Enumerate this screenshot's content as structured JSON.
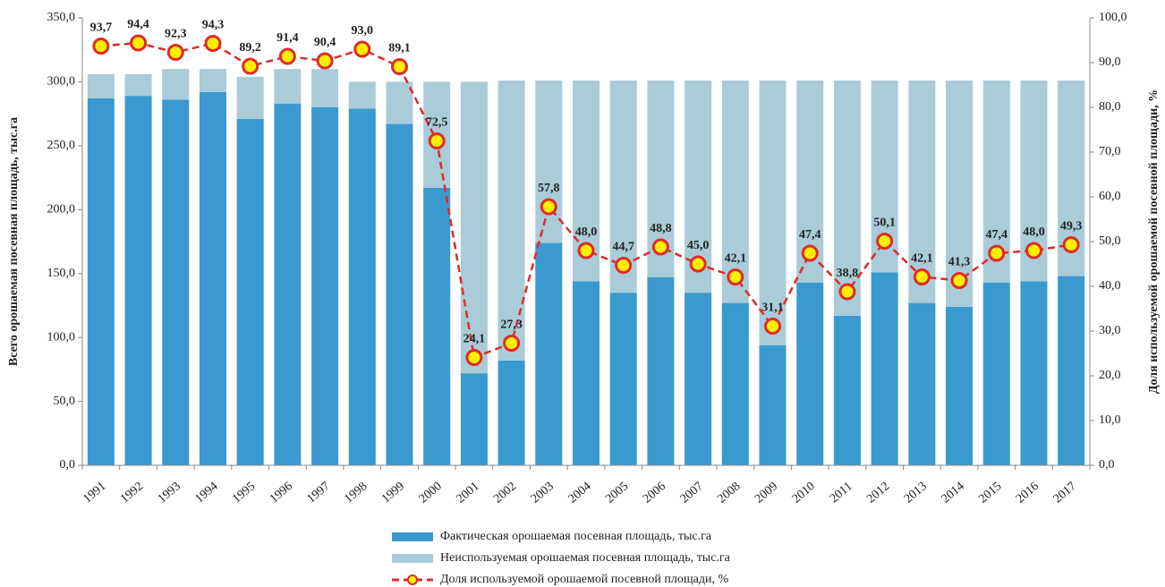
{
  "chart_data": {
    "type": "bar",
    "stacked": true,
    "categories": [
      "1991",
      "1992",
      "1993",
      "1994",
      "1995",
      "1996",
      "1997",
      "1998",
      "1999",
      "2000",
      "2001",
      "2002",
      "2003",
      "2004",
      "2005",
      "2006",
      "2007",
      "2008",
      "2009",
      "2010",
      "2011",
      "2012",
      "2013",
      "2014",
      "2015",
      "2016",
      "2017"
    ],
    "series": [
      {
        "name": "Фактическая орошаемая посевная площадь, тыс.га",
        "type": "bar",
        "color": "#3a9ad0",
        "values": [
          287,
          289,
          286,
          292,
          271,
          283,
          280,
          279,
          267,
          217,
          72,
          82,
          174,
          144,
          135,
          147,
          135,
          127,
          94,
          143,
          117,
          151,
          127,
          124,
          143,
          144,
          148
        ]
      },
      {
        "name": "Неиспользуемая орошаемая посевная площадь, тыс.га",
        "type": "bar",
        "color": "#a9ccd8",
        "values": [
          19,
          17,
          24,
          18,
          33,
          27,
          30,
          21,
          33,
          83,
          228,
          219,
          127,
          157,
          166,
          154,
          166,
          174,
          207,
          158,
          184,
          150,
          174,
          177,
          158,
          157,
          153
        ]
      },
      {
        "name": "Доля используемой орошаемой посевной площади, %",
        "type": "line",
        "axis": "y2",
        "color": "#e02a2a",
        "marker_color": "#ffee00",
        "values": [
          93.7,
          94.4,
          92.3,
          94.3,
          89.2,
          91.4,
          90.4,
          93.0,
          89.1,
          72.5,
          24.1,
          27.3,
          57.8,
          48.0,
          44.7,
          48.8,
          45.0,
          42.1,
          31.1,
          47.4,
          38.8,
          50.1,
          42.1,
          41.3,
          47.4,
          48.0,
          49.3
        ],
        "value_labels": [
          "93,7",
          "94,4",
          "92,3",
          "94,3",
          "89,2",
          "91,4",
          "90,4",
          "93,0",
          "89,1",
          "72,5",
          "24,1",
          "27,3",
          "57,8",
          "48,0",
          "44,7",
          "48,8",
          "45,0",
          "42,1",
          "31,1",
          "47,4",
          "38,8",
          "50,1",
          "42,1",
          "41,3",
          "47,4",
          "48,0",
          "49,3"
        ]
      }
    ],
    "ylabel": "Всего орошаемая посевная площадь, тыс.га",
    "y2label": "Доля используемой орошаемой посевной площади, %",
    "ylim": [
      0,
      350
    ],
    "yticks": [
      {
        "value": 0,
        "label": "0,0"
      },
      {
        "value": 50,
        "label": "50,0"
      },
      {
        "value": 100,
        "label": "100,0"
      },
      {
        "value": 150,
        "label": "150,0"
      },
      {
        "value": 200,
        "label": "200,0"
      },
      {
        "value": 250,
        "label": "250,0"
      },
      {
        "value": 300,
        "label": "300,0"
      },
      {
        "value": 350,
        "label": "350,0"
      }
    ],
    "y2lim": [
      0,
      100
    ],
    "y2ticks": [
      {
        "value": 0,
        "label": "0,0"
      },
      {
        "value": 10,
        "label": "10,0"
      },
      {
        "value": 20,
        "label": "20,0"
      },
      {
        "value": 30,
        "label": "30,0"
      },
      {
        "value": 40,
        "label": "40,0"
      },
      {
        "value": 50,
        "label": "50,0"
      },
      {
        "value": 60,
        "label": "60,0"
      },
      {
        "value": 70,
        "label": "70,0"
      },
      {
        "value": 80,
        "label": "80,0"
      },
      {
        "value": 90,
        "label": "90,0"
      },
      {
        "value": 100,
        "label": "100,0"
      }
    ],
    "grid": false,
    "legend": "bottom"
  }
}
